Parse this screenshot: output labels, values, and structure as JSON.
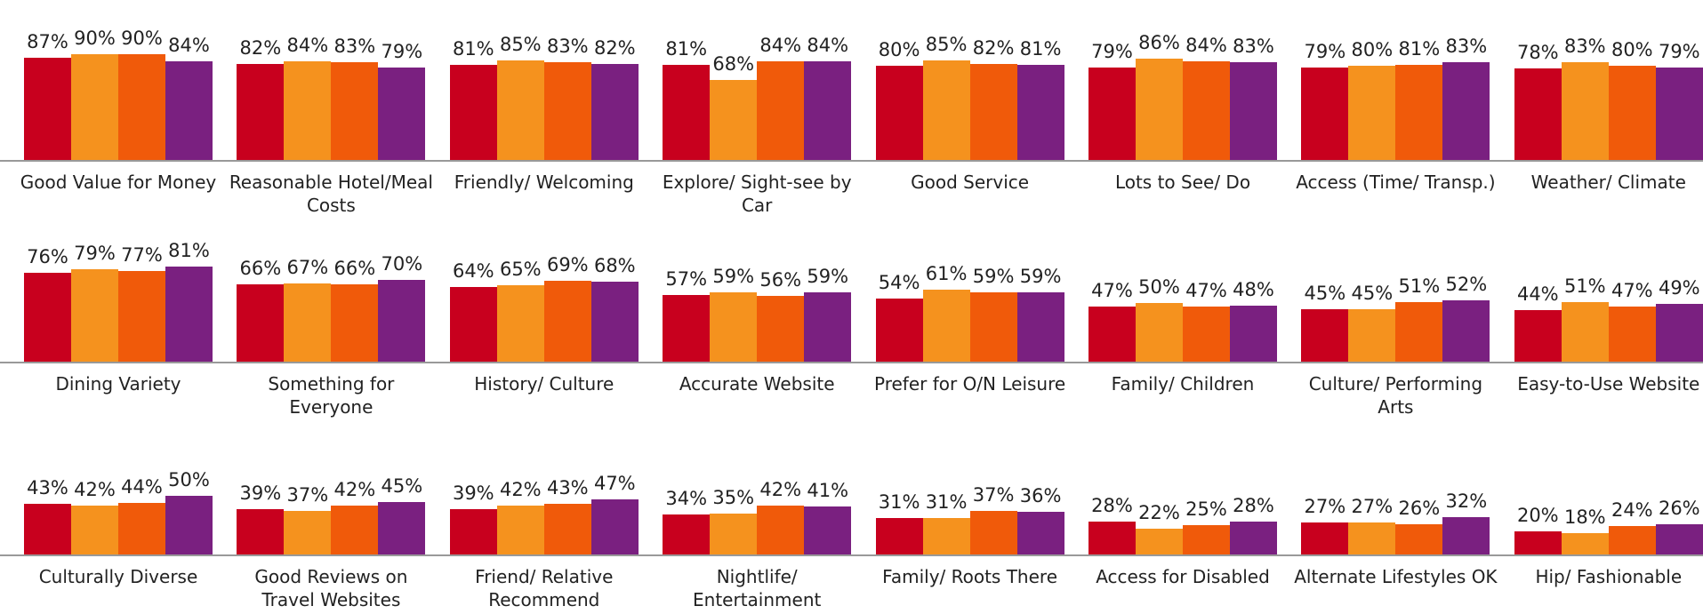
{
  "chart_data": {
    "type": "bar",
    "categories": [
      "Good Value for Money",
      "Reasonable Hotel/Meal Costs",
      "Friendly/ Welcoming",
      "Explore/ Sight-see by Car",
      "Good Service",
      "Lots to See/ Do",
      "Access (Time/ Transp.)",
      "Weather/ Climate",
      "Dining Variety",
      "Something for Everyone",
      "History/ Culture",
      "Accurate Website",
      "Prefer for O/N Leisure",
      "Family/ Children",
      "Culture/ Performing Arts",
      "Easy-to-Use Website",
      "Culturally Diverse",
      "Good Reviews on Travel Websites",
      "Friend/ Relative Recommend",
      "Nightlife/ Entertainment",
      "Family/ Roots There",
      "Access for Disabled",
      "Alternate Lifestyles OK",
      "Hip/ Fashionable"
    ],
    "ylim": [
      0,
      100
    ],
    "series": [
      {
        "color": "#c8001e",
        "values": [
          87,
          82,
          81,
          81,
          80,
          79,
          79,
          78,
          76,
          66,
          64,
          57,
          54,
          47,
          45,
          44,
          43,
          39,
          39,
          34,
          31,
          28,
          27,
          20
        ],
        "value_labels": [
          "87%",
          "82%",
          "81%",
          "81%",
          "80%",
          "79%",
          "79%",
          "78%",
          "76%",
          "66%",
          "64%",
          "57%",
          "54%",
          "47%",
          "45%",
          "44%",
          "43%",
          "39%",
          "39%",
          "34%",
          "31%",
          "28%",
          "27%",
          "20%"
        ]
      },
      {
        "color": "#f5921e",
        "values": [
          90,
          84,
          85,
          68,
          85,
          86,
          80,
          83,
          79,
          67,
          65,
          59,
          61,
          50,
          45,
          51,
          42,
          37,
          42,
          35,
          31,
          22,
          27,
          18
        ],
        "value_labels": [
          "90%",
          "84%",
          "85%",
          "68%",
          "85%",
          "86%",
          "80%",
          "83%",
          "79%",
          "67%",
          "65%",
          "59%",
          "61%",
          "50%",
          "45%",
          "51%",
          "42%",
          "37%",
          "42%",
          "35%",
          "31%",
          "22%",
          "27%",
          "18%"
        ]
      },
      {
        "color": "#f05a0a",
        "values": [
          90,
          83,
          83,
          84,
          82,
          84,
          81,
          80,
          77,
          66,
          69,
          56,
          59,
          47,
          51,
          47,
          44,
          42,
          43,
          42,
          37,
          25,
          26,
          24
        ],
        "value_labels": [
          "90%",
          "83%",
          "83%",
          "84%",
          "82%",
          "84%",
          "81%",
          "80%",
          "77%",
          "66%",
          "69%",
          "56%",
          "59%",
          "47%",
          "51%",
          "47%",
          "44%",
          "42%",
          "43%",
          "42%",
          "37%",
          "25%",
          "26%",
          "24%"
        ]
      },
      {
        "color": "#7a2080",
        "values": [
          84,
          79,
          82,
          84,
          81,
          83,
          83,
          79,
          81,
          70,
          68,
          59,
          59,
          48,
          52,
          49,
          50,
          45,
          47,
          41,
          36,
          28,
          32,
          26
        ],
        "value_labels": [
          "84%",
          "79%",
          "82%",
          "84%",
          "81%",
          "83%",
          "83%",
          "79%",
          "81%",
          "70%",
          "68%",
          "59%",
          "59%",
          "48%",
          "52%",
          "49%",
          "50%",
          "45%",
          "47%",
          "41%",
          "36%",
          "28%",
          "32%",
          "26%"
        ]
      }
    ]
  }
}
